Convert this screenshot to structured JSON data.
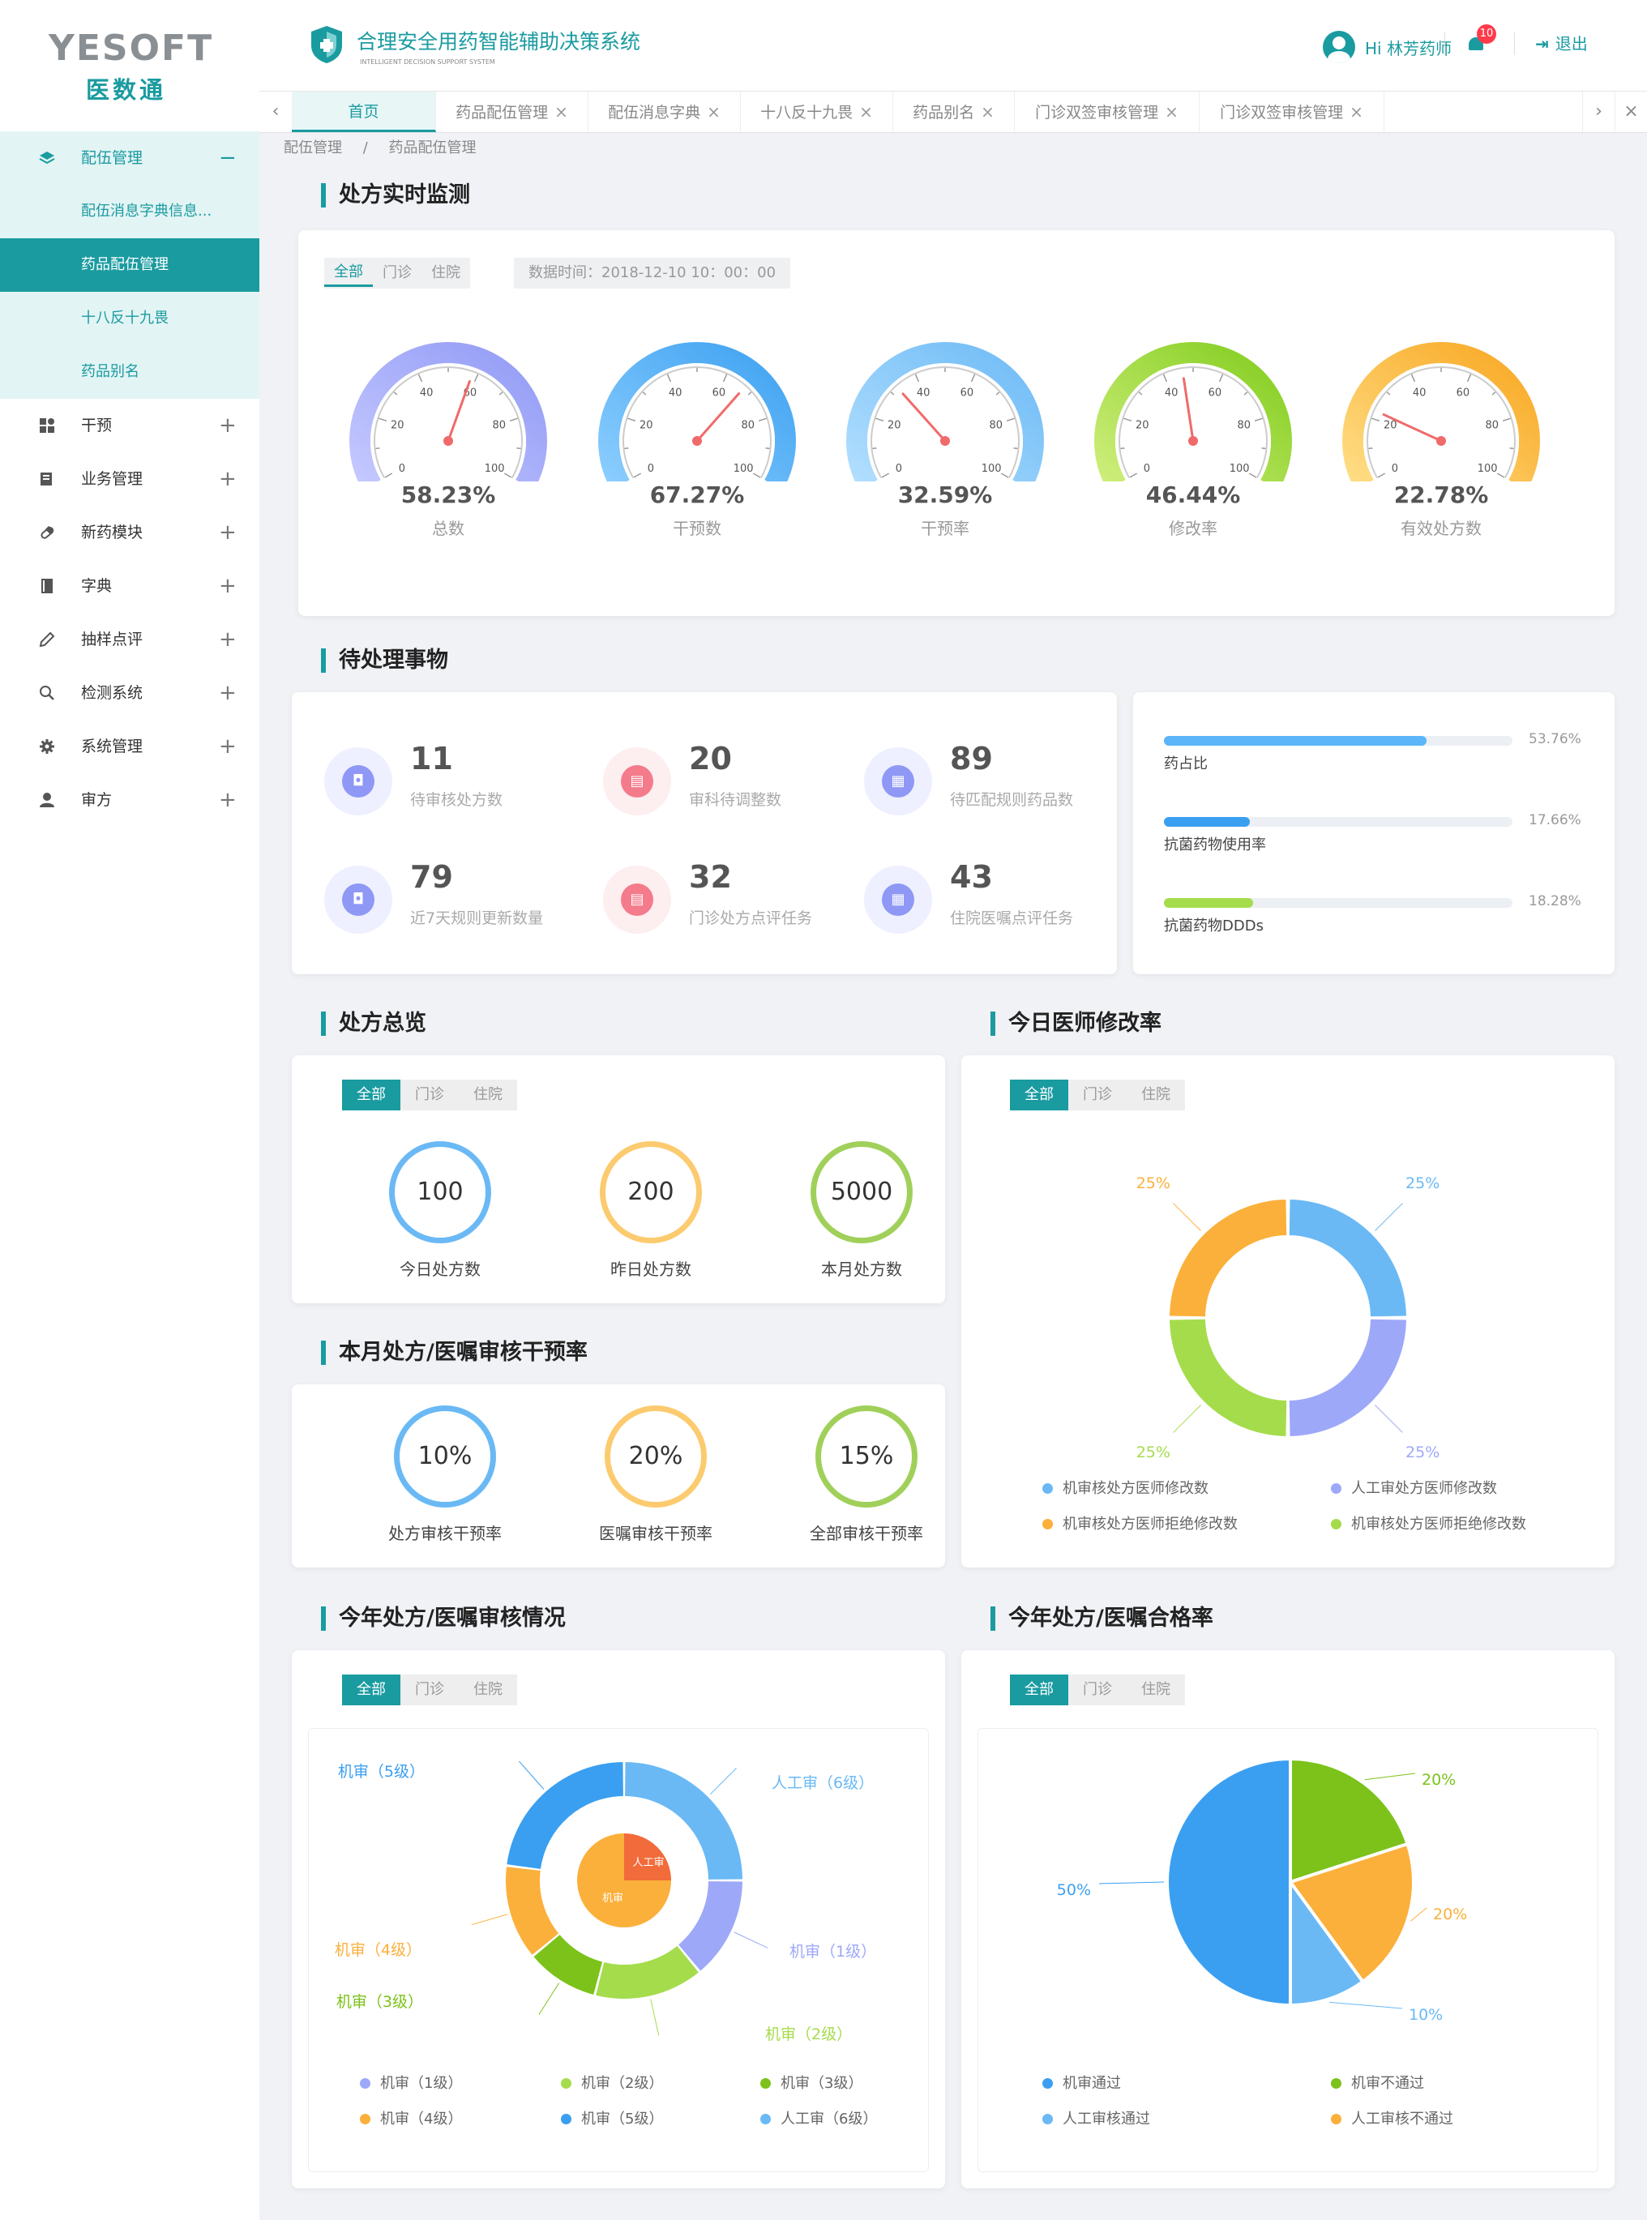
{
  "brand": {
    "logo_en": "YESOFT",
    "logo_cn": "医数通"
  },
  "header": {
    "title": "合理安全用药智能辅助决策系统",
    "subtitle": "INTELLIGENT DECISION SUPPORT SYSTEM",
    "greeting": "Hi 林芳药师",
    "notifications": "10",
    "logout": "退出"
  },
  "tabs": [
    {
      "label": "首页",
      "closable": false
    },
    {
      "label": "药品配伍管理",
      "closable": true
    },
    {
      "label": "配伍消息字典",
      "closable": true
    },
    {
      "label": "十八反十九畏",
      "closable": true
    },
    {
      "label": "药品别名",
      "closable": true
    },
    {
      "label": "门诊双签审核管理",
      "closable": true
    },
    {
      "label": "门诊双签审核管理",
      "closable": true
    }
  ],
  "breadcrumb": {
    "parent": "配伍管理",
    "sep": "/",
    "current": "药品配伍管理"
  },
  "sidebar": {
    "groups": [
      {
        "label": "配伍管理",
        "icon": "layers-icon",
        "expanded": true
      },
      {
        "label": "干预",
        "icon": "grid-icon"
      },
      {
        "label": "业务管理",
        "icon": "book-icon"
      },
      {
        "label": "新药模块",
        "icon": "pill-icon"
      },
      {
        "label": "字典",
        "icon": "dictionary-icon"
      },
      {
        "label": "抽样点评",
        "icon": "pen-icon"
      },
      {
        "label": "检测系统",
        "icon": "magnifier-icon"
      },
      {
        "label": "系统管理",
        "icon": "gear-icon"
      },
      {
        "label": "审方",
        "icon": "user-icon"
      }
    ],
    "sub_items": [
      "配伍消息字典信息...",
      "药品配伍管理",
      "十八反十九畏",
      "药品别名"
    ]
  },
  "filters": {
    "all": "全部",
    "outpatient": "门诊",
    "inpatient": "住院"
  },
  "monitor": {
    "title": "处方实时监测",
    "data_time": "数据时间：2018-12-10   10：00：00",
    "gauges": [
      {
        "value_text": "58.23%",
        "value": 58.23,
        "label": "总数",
        "colors": [
          "#c7cbff",
          "#8f98f5"
        ]
      },
      {
        "value_text": "67.27%",
        "value": 67.27,
        "label": "干预数",
        "colors": [
          "#8fd0ff",
          "#3a9ff0"
        ]
      },
      {
        "value_text": "32.59%",
        "value": 32.59,
        "label": "干预率",
        "colors": [
          "#b5e0ff",
          "#6ab9f5"
        ]
      },
      {
        "value_text": "46.44%",
        "value": 46.44,
        "label": "修改率",
        "colors": [
          "#d2f080",
          "#7ecb1a"
        ]
      },
      {
        "value_text": "22.78%",
        "value": 22.78,
        "label": "有效处方数",
        "colors": [
          "#ffe08a",
          "#f8a41c"
        ]
      }
    ],
    "ticks": [
      "0",
      "20",
      "40",
      "60",
      "80",
      "100"
    ]
  },
  "pending": {
    "title": "待处理事物",
    "items": [
      {
        "num": "11",
        "label": "待审核处方数",
        "icon": "camera-icon",
        "color": "#8f98f5",
        "bg": "#eef0ff"
      },
      {
        "num": "20",
        "label": "审科待调整数",
        "icon": "message-icon",
        "color": "#f47b8b",
        "bg": "#fdeef0"
      },
      {
        "num": "89",
        "label": "待匹配规则药品数",
        "icon": "calendar-icon",
        "color": "#8f98f5",
        "bg": "#eef0ff"
      },
      {
        "num": "79",
        "label": "近7天规则更新数量",
        "icon": "camera-icon",
        "color": "#8f98f5",
        "bg": "#eef0ff"
      },
      {
        "num": "32",
        "label": "门诊处方点评任务",
        "icon": "message-icon",
        "color": "#f47b8b",
        "bg": "#fdeef0"
      },
      {
        "num": "43",
        "label": "住院医嘱点评任务",
        "icon": "calendar-icon",
        "color": "#8f98f5",
        "bg": "#eef0ff"
      }
    ],
    "bars": [
      {
        "label": "药占比",
        "pct": "53.76%",
        "value": 0.5376,
        "color": "#5bb5f8"
      },
      {
        "label": "抗菌药物使用率",
        "pct": "17.66%",
        "value": 0.1766,
        "color": "#3a9ff0"
      },
      {
        "label": "抗菌药物DDDs",
        "pct": "18.28%",
        "value": 0.1828,
        "color": "#a5dc4c"
      }
    ]
  },
  "overview": {
    "title": "处方总览",
    "rings": [
      {
        "value": "100",
        "label": "今日处方数",
        "color": "#6ab9f5"
      },
      {
        "value": "200",
        "label": "昨日处方数",
        "color": "#fccb6f"
      },
      {
        "value": "5000",
        "label": "本月处方数",
        "color": "#a0d05a"
      }
    ]
  },
  "intervention": {
    "title": "本月处方/医嘱审核干预率",
    "rings": [
      {
        "value": "10%",
        "label": "处方审核干预率",
        "color": "#6ab9f5"
      },
      {
        "value": "20%",
        "label": "医嘱审核干预率",
        "color": "#fccb6f"
      },
      {
        "value": "15%",
        "label": "全部审核干预率",
        "color": "#a0d05a"
      }
    ]
  },
  "modify": {
    "title": "今日医师修改率",
    "slice_labels": [
      "25%",
      "25%",
      "25%",
      "25%"
    ],
    "legend": [
      "机审核处方医师修改数",
      "人工审处方医师修改数",
      "机审核处方医师拒绝修改数",
      "机审核处方医师拒绝修改数"
    ]
  },
  "review": {
    "title": "今年处方/医嘱审核情况",
    "outer_labels": [
      "人工审（6级）",
      "机审（1级）",
      "机审（2级）",
      "机审（3级）",
      "机审（4级）",
      "机审（5级）"
    ],
    "inner_labels": [
      "人工审",
      "机审"
    ],
    "legend": [
      "机审（1级）",
      "机审（2级）",
      "机审（3级）",
      "机审（4级）",
      "机审（5级）",
      "人工审（6级）"
    ]
  },
  "pass": {
    "title": "今年处方/医嘱合格率",
    "slice_labels": [
      "20%",
      "20%",
      "10%",
      "50%"
    ],
    "legend": [
      "机审通过",
      "机审不通过",
      "人工审核通过",
      "人工审核不通过"
    ]
  },
  "chart_data": [
    {
      "type": "pie",
      "title": "今日医师修改率",
      "categories": [
        "机审核处方医师修改数",
        "人工审处方医师修改数",
        "机审核处方医师拒绝修改数",
        "机审核处方医师拒绝修改数"
      ],
      "values": [
        25,
        25,
        25,
        25
      ],
      "colors": [
        "#6ab9f5",
        "#9ea8f8",
        "#a5dc4c",
        "#fbb03b"
      ],
      "donut": true
    },
    {
      "type": "pie",
      "title": "今年处方/医嘱审核情况",
      "series": [
        {
          "name": "外环",
          "categories": [
            "人工审（6级）",
            "机审（1级）",
            "机审（2级）",
            "机审（3级）",
            "机审（4级）",
            "机审（5级）"
          ],
          "values": [
            25,
            14,
            15,
            10,
            13,
            23
          ]
        },
        {
          "name": "内环",
          "categories": [
            "人工审",
            "机审"
          ],
          "values": [
            25,
            75
          ]
        }
      ],
      "colors": [
        "#6ab9f5",
        "#9ea8f8",
        "#a5dc4c",
        "#7cc21a",
        "#fbb03b",
        "#3a9ff0"
      ]
    },
    {
      "type": "pie",
      "title": "今年处方/医嘱合格率",
      "categories": [
        "机审不通过",
        "人工审核不通过",
        "人工审核通过",
        "机审通过"
      ],
      "values": [
        20,
        20,
        10,
        50
      ],
      "colors": [
        "#7cc21a",
        "#fbb03b",
        "#6ab9f5",
        "#3a9ff0"
      ]
    }
  ]
}
